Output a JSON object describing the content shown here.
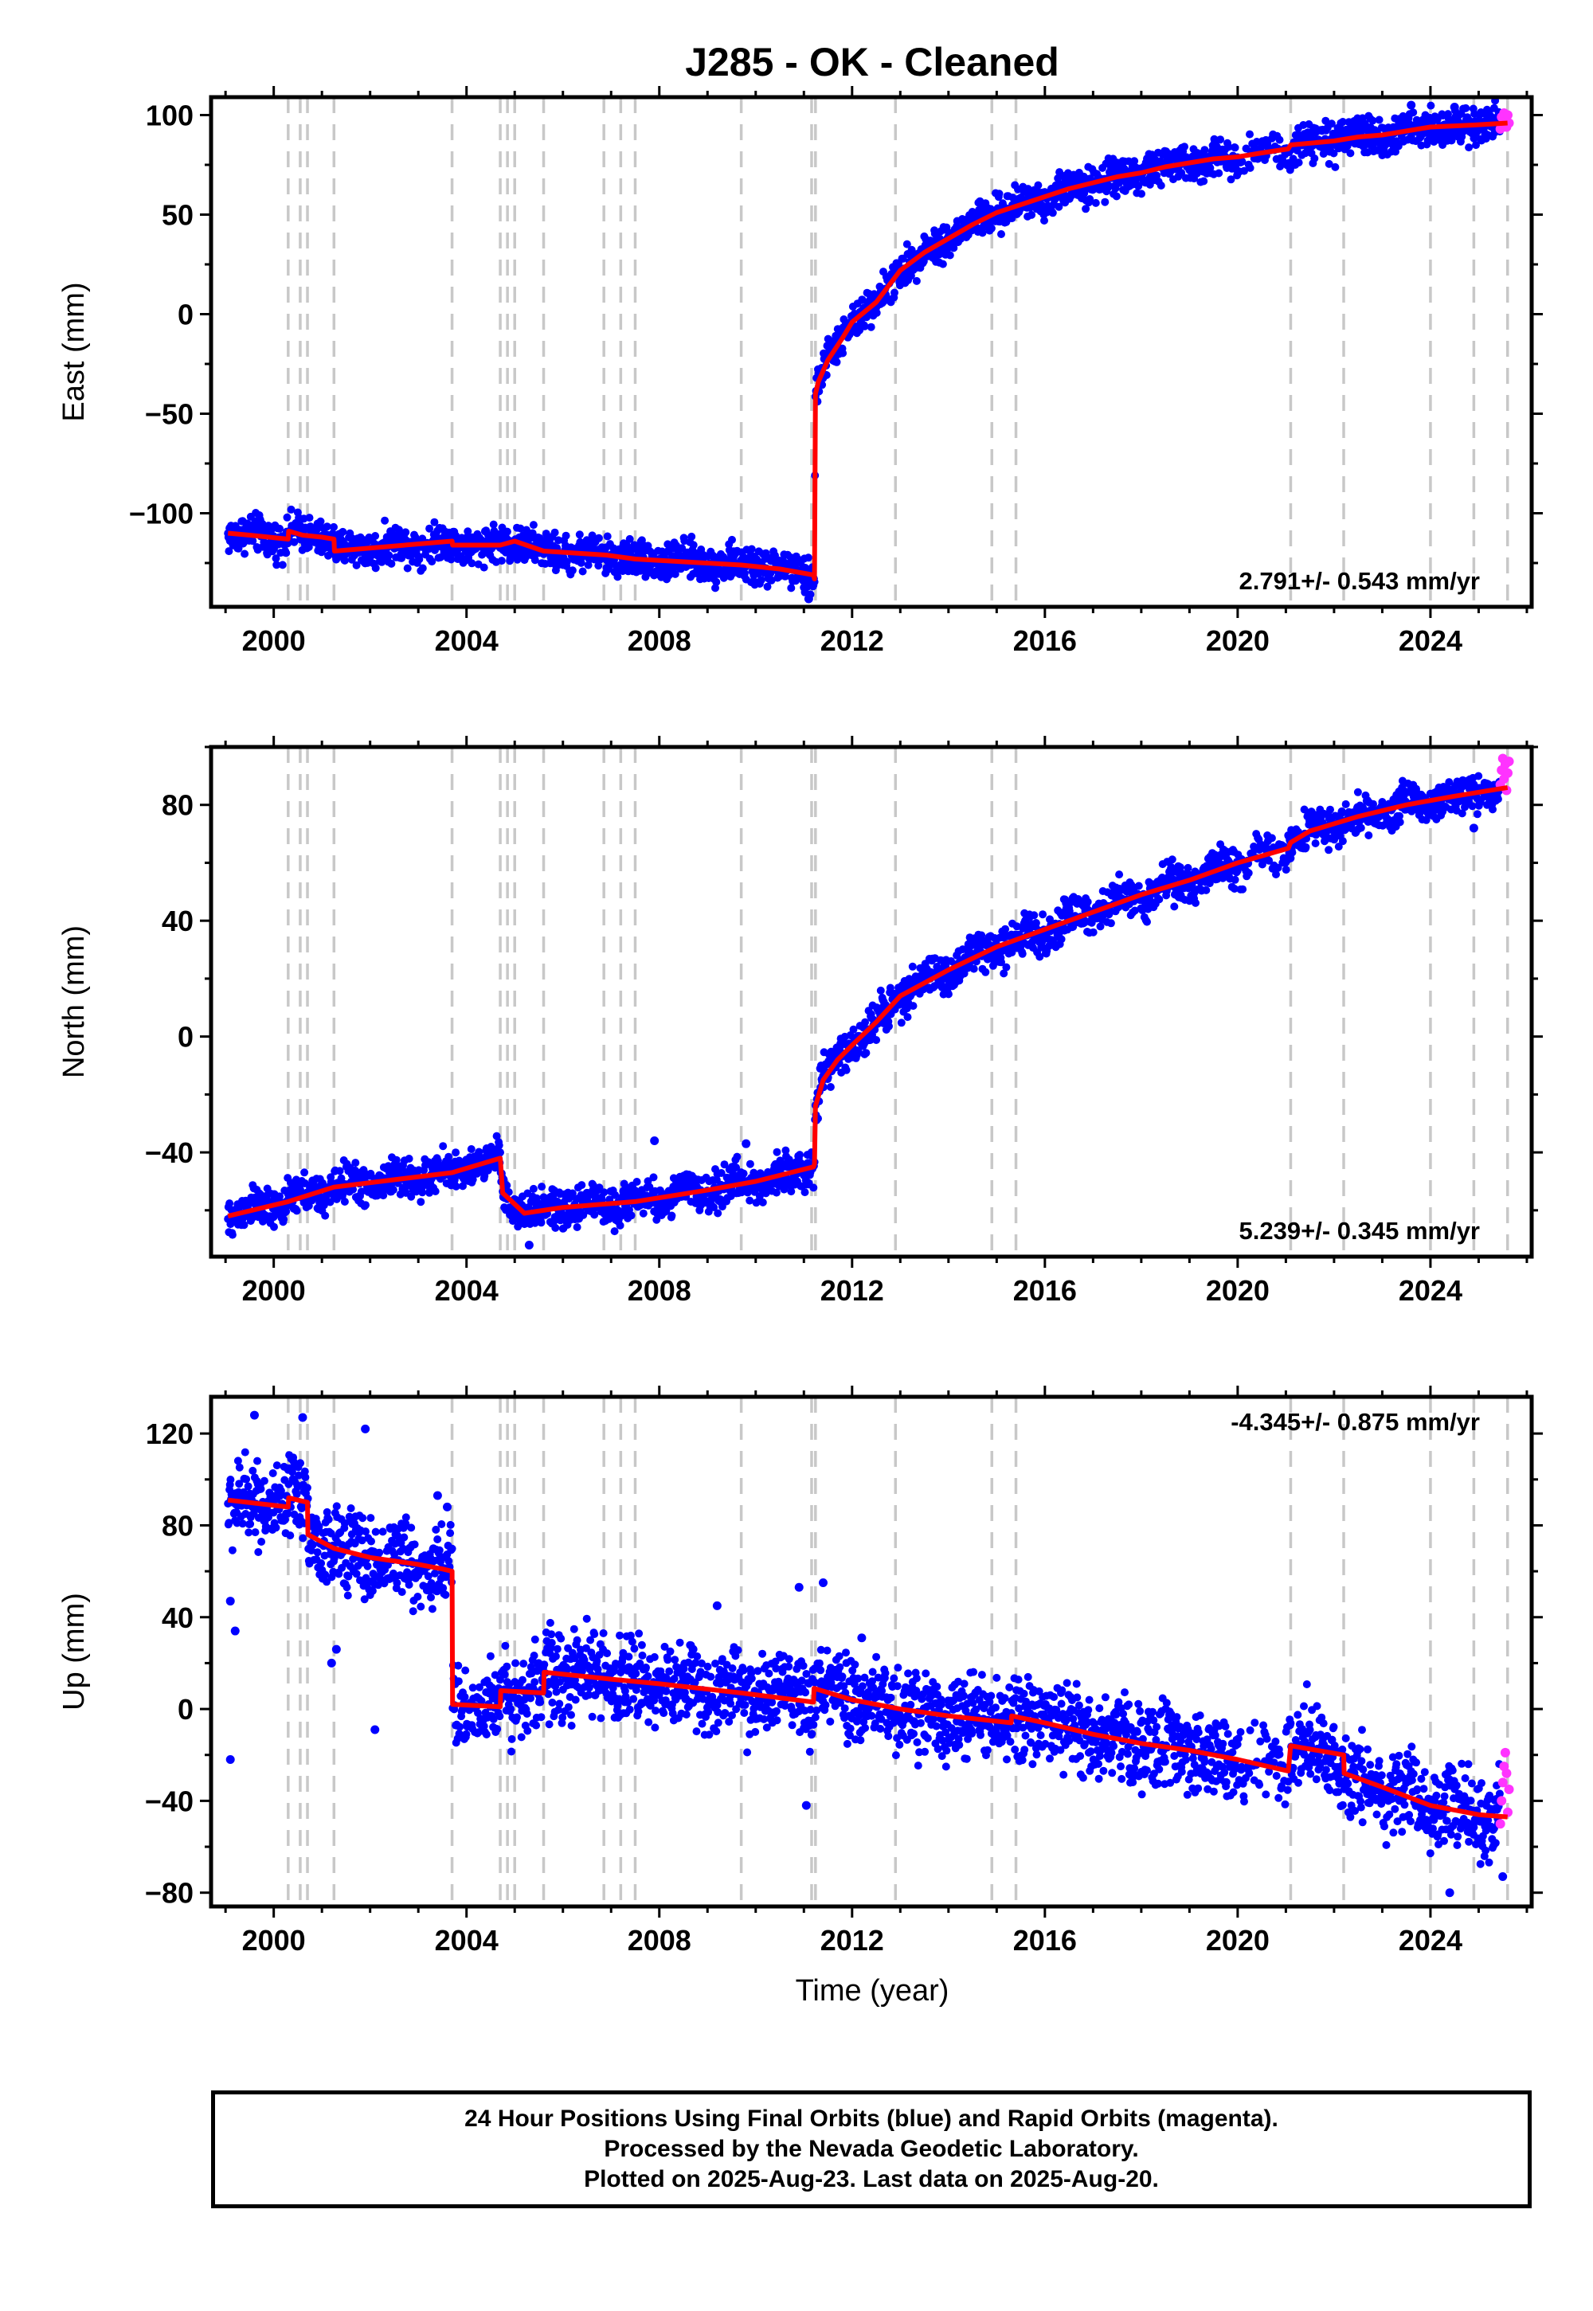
{
  "title": "J285  - OK - Cleaned",
  "xlabel": "Time (year)",
  "footer": {
    "line1": "24 Hour Positions Using Final Orbits (blue) and Rapid Orbits (magenta).",
    "line2": "Processed by the Nevada Geodetic Laboratory.",
    "line3": "Plotted on 2025-Aug-23. Last data on 2025-Aug-20."
  },
  "colors": {
    "final": "#0000ff",
    "rapid": "#ff33ff",
    "model": "#ff0000",
    "event_lines": "#c8c8c8"
  },
  "chart_data": [
    {
      "type": "scatter",
      "panel": "east",
      "ylabel": "East (mm)",
      "xlim": [
        1998.7,
        2026.1
      ],
      "ylim": [
        -147,
        109
      ],
      "xticks": [
        2000,
        2004,
        2008,
        2012,
        2016,
        2020,
        2024
      ],
      "yticks": [
        -100,
        -50,
        0,
        50,
        100
      ],
      "velocity_label": "2.791+/- 0.543 mm/yr",
      "velocity_label_position": "bottom-right",
      "final_start": 1999.05,
      "final_end": 2025.44,
      "rapid_start": 2025.45,
      "rapid_end": 2025.63,
      "model": [
        [
          1999.05,
          -110
        ],
        [
          1999.5,
          -111
        ],
        [
          2000.3,
          -113
        ],
        [
          2000.31,
          -109
        ],
        [
          2000.6,
          -111
        ],
        [
          2001.0,
          -112
        ],
        [
          2001.25,
          -113
        ],
        [
          2001.26,
          -119
        ],
        [
          2003.7,
          -114
        ],
        [
          2003.71,
          -116
        ],
        [
          2004.7,
          -116
        ],
        [
          2005.0,
          -114
        ],
        [
          2005.6,
          -119
        ],
        [
          2006.9,
          -121
        ],
        [
          2007.5,
          -123
        ],
        [
          2009.7,
          -126
        ],
        [
          2010.5,
          -128
        ],
        [
          2011.2,
          -131
        ],
        [
          2011.22,
          -133
        ],
        [
          2011.24,
          -40
        ],
        [
          2011.3,
          -34
        ],
        [
          2011.5,
          -23
        ],
        [
          2011.8,
          -12
        ],
        [
          2012.0,
          -4
        ],
        [
          2012.5,
          6
        ],
        [
          2013.0,
          22
        ],
        [
          2013.5,
          31
        ],
        [
          2014.0,
          38
        ],
        [
          2014.5,
          45
        ],
        [
          2015.0,
          51
        ],
        [
          2015.5,
          55
        ],
        [
          2016.0,
          59
        ],
        [
          2016.5,
          63
        ],
        [
          2017.0,
          66
        ],
        [
          2017.5,
          69
        ],
        [
          2018.0,
          71
        ],
        [
          2018.5,
          74
        ],
        [
          2019.0,
          76
        ],
        [
          2019.5,
          78
        ],
        [
          2020.0,
          79
        ],
        [
          2020.5,
          81
        ],
        [
          2021.05,
          83
        ],
        [
          2021.1,
          85
        ],
        [
          2022.0,
          87
        ],
        [
          2022.5,
          89
        ],
        [
          2023.0,
          90
        ],
        [
          2023.5,
          92
        ],
        [
          2024.0,
          94
        ],
        [
          2024.9,
          95
        ],
        [
          2025.6,
          96
        ]
      ],
      "jitter": 4.5,
      "seasonal_amplitude": 1.6,
      "rapid_values": [
        93,
        99,
        95,
        101,
        97,
        94,
        100,
        96
      ],
      "outliers": [
        [
          2011.1,
          -143
        ],
        [
          2023.6,
          105
        ],
        [
          2024.5,
          104
        ]
      ]
    },
    {
      "type": "scatter",
      "panel": "north",
      "ylabel": "North (mm)",
      "xlim": [
        1998.7,
        2026.1
      ],
      "ylim": [
        -76,
        100
      ],
      "xticks": [
        2000,
        2004,
        2008,
        2012,
        2016,
        2020,
        2024
      ],
      "yticks": [
        -40,
        0,
        40,
        80
      ],
      "velocity_label": "5.239+/- 0.345 mm/yr",
      "velocity_label_position": "bottom-right",
      "final_start": 1999.05,
      "final_end": 2025.44,
      "rapid_start": 2025.45,
      "rapid_end": 2025.63,
      "model": [
        [
          1999.05,
          -62
        ],
        [
          2000.3,
          -57
        ],
        [
          2001.25,
          -52
        ],
        [
          2003.7,
          -47
        ],
        [
          2004.7,
          -42
        ],
        [
          2004.75,
          -54
        ],
        [
          2005.2,
          -61
        ],
        [
          2006.0,
          -59
        ],
        [
          2007.5,
          -57
        ],
        [
          2009.0,
          -53
        ],
        [
          2010.0,
          -50
        ],
        [
          2011.2,
          -45
        ],
        [
          2011.22,
          -44
        ],
        [
          2011.24,
          -24
        ],
        [
          2011.4,
          -15
        ],
        [
          2011.7,
          -8
        ],
        [
          2012.0,
          -3
        ],
        [
          2012.5,
          5
        ],
        [
          2013.0,
          14
        ],
        [
          2014.0,
          23
        ],
        [
          2015.0,
          31
        ],
        [
          2016.0,
          37
        ],
        [
          2017.0,
          43
        ],
        [
          2018.0,
          49
        ],
        [
          2019.0,
          54
        ],
        [
          2020.0,
          60
        ],
        [
          2021.05,
          65
        ],
        [
          2021.1,
          67
        ],
        [
          2021.5,
          71
        ],
        [
          2022.5,
          76
        ],
        [
          2023.5,
          80
        ],
        [
          2024.5,
          83
        ],
        [
          2025.6,
          86
        ]
      ],
      "jitter": 3.2,
      "seasonal_amplitude": 1.8,
      "rapid_values": [
        87,
        92,
        96,
        89,
        94,
        85,
        91,
        95
      ],
      "outliers": [
        [
          2007.9,
          -36
        ],
        [
          2009.8,
          -37
        ],
        [
          2024.9,
          72
        ],
        [
          2005.3,
          -72
        ]
      ]
    },
    {
      "type": "scatter",
      "panel": "up",
      "ylabel": "Up (mm)",
      "xlim": [
        1998.7,
        2026.1
      ],
      "ylim": [
        -86,
        136
      ],
      "xticks": [
        2000,
        2004,
        2008,
        2012,
        2016,
        2020,
        2024
      ],
      "yticks": [
        -80,
        -40,
        0,
        40,
        80,
        120
      ],
      "velocity_label": "-4.345+/- 0.875 mm/yr",
      "velocity_label_position": "top-right",
      "final_start": 1999.05,
      "final_end": 2025.44,
      "rapid_start": 2025.45,
      "rapid_end": 2025.63,
      "model": [
        [
          1999.05,
          91
        ],
        [
          2000.3,
          88
        ],
        [
          2000.31,
          92
        ],
        [
          2000.7,
          90
        ],
        [
          2000.71,
          76
        ],
        [
          2001.25,
          70
        ],
        [
          2002.0,
          66
        ],
        [
          2003.0,
          63
        ],
        [
          2003.5,
          61
        ],
        [
          2003.7,
          60
        ],
        [
          2003.71,
          2
        ],
        [
          2004.7,
          1
        ],
        [
          2004.71,
          8
        ],
        [
          2005.6,
          7
        ],
        [
          2005.61,
          16
        ],
        [
          2007.0,
          13
        ],
        [
          2008.0,
          11
        ],
        [
          2009.7,
          7
        ],
        [
          2011.2,
          3
        ],
        [
          2011.21,
          9
        ],
        [
          2012.0,
          4
        ],
        [
          2013.0,
          0
        ],
        [
          2014.0,
          -3
        ],
        [
          2015.3,
          -6
        ],
        [
          2015.31,
          -3
        ],
        [
          2016.0,
          -6
        ],
        [
          2017.0,
          -11
        ],
        [
          2018.0,
          -15
        ],
        [
          2019.0,
          -18
        ],
        [
          2020.0,
          -22
        ],
        [
          2021.05,
          -27
        ],
        [
          2021.1,
          -16
        ],
        [
          2022.2,
          -20
        ],
        [
          2022.21,
          -28
        ],
        [
          2023.0,
          -34
        ],
        [
          2024.0,
          -42
        ],
        [
          2025.0,
          -46
        ],
        [
          2025.6,
          -47
        ]
      ],
      "jitter": 9,
      "seasonal_amplitude": 3,
      "rapid_values": [
        -50,
        -40,
        -32,
        -25,
        -19,
        -28,
        -45,
        -35
      ],
      "outliers": [
        [
          1999.1,
          -22
        ],
        [
          1999.2,
          34
        ],
        [
          1999.1,
          47
        ],
        [
          2001.2,
          20
        ],
        [
          2001.3,
          26
        ],
        [
          2002.1,
          -9
        ],
        [
          2003.6,
          88
        ],
        [
          2003.4,
          93
        ],
        [
          2010.9,
          53
        ],
        [
          2011.05,
          -42
        ],
        [
          2011.4,
          55
        ],
        [
          2008.7,
          26
        ],
        [
          2009.2,
          45
        ],
        [
          2012.2,
          31
        ],
        [
          2025.5,
          -73
        ],
        [
          2024.4,
          -80
        ],
        [
          2001.9,
          122
        ],
        [
          2000.6,
          127
        ],
        [
          1999.6,
          128
        ]
      ]
    }
  ],
  "event_lines": [
    2000.3,
    2000.55,
    2000.7,
    2001.25,
    2003.7,
    2004.7,
    2004.85,
    2005.0,
    2005.6,
    2006.85,
    2007.2,
    2007.5,
    2009.7,
    2011.16,
    2011.24,
    2012.9,
    2014.9,
    2015.4,
    2021.1,
    2022.2,
    2024.0,
    2024.9,
    2025.6
  ]
}
